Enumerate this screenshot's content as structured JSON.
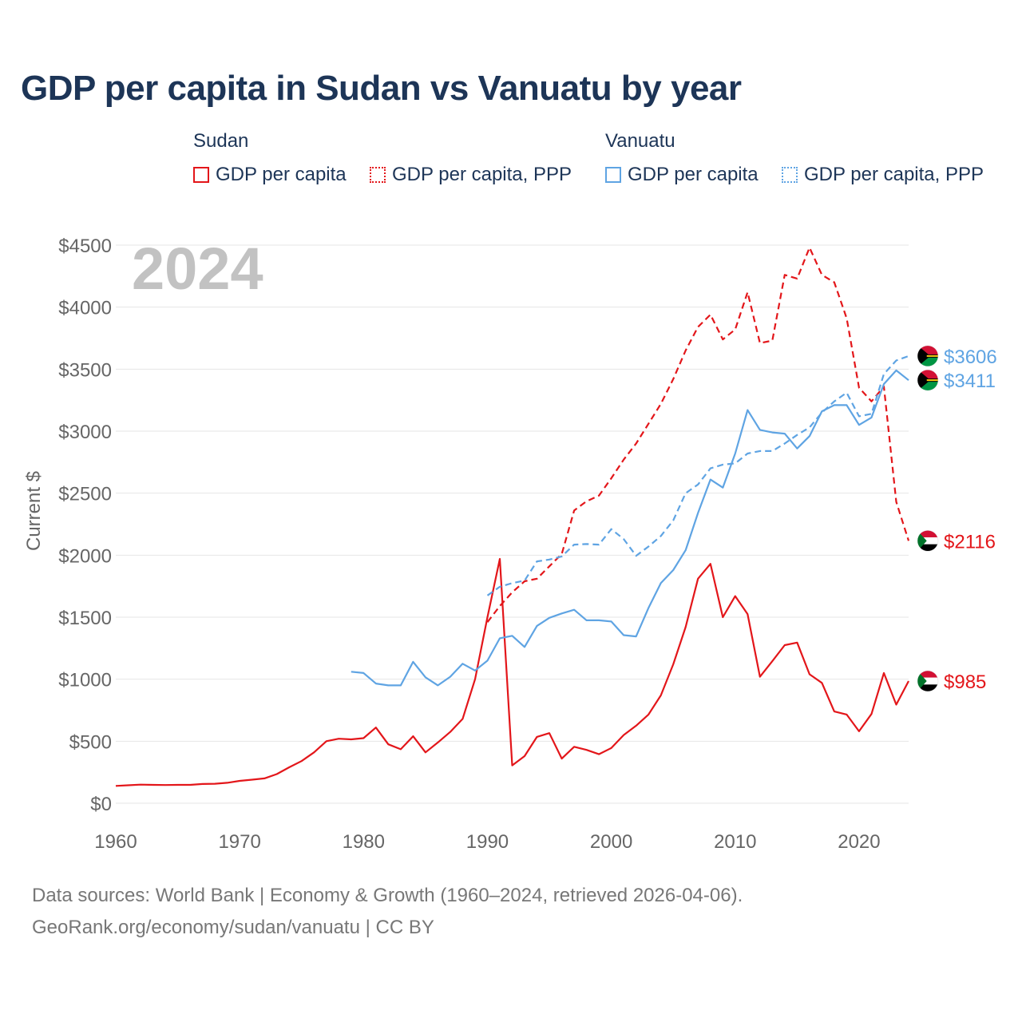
{
  "chart_data": {
    "type": "line",
    "title": "GDP per capita in Sudan vs Vanuatu by year",
    "year_label": "2024",
    "xlabel": "",
    "ylabel": "Current $",
    "xlim": [
      1960,
      2024
    ],
    "ylim": [
      0,
      4500
    ],
    "x_ticks": [
      1960,
      1970,
      1980,
      1990,
      2000,
      2010,
      2020
    ],
    "x_tick_labels": [
      "1960",
      "1970",
      "1980",
      "1990",
      "2000",
      "2010",
      "2020"
    ],
    "y_ticks": [
      0,
      500,
      1000,
      1500,
      2000,
      2500,
      3000,
      3500,
      4000,
      4500
    ],
    "y_tick_labels": [
      "$0",
      "$500",
      "$1000",
      "$1500",
      "$2000",
      "$2500",
      "$3000",
      "$3500",
      "$4000",
      "$4500"
    ],
    "grid": true,
    "legend": {
      "position": "top",
      "groups": [
        {
          "country": "Sudan",
          "items": [
            "GDP per capita",
            "GDP per capita, PPP"
          ]
        },
        {
          "country": "Vanuatu",
          "items": [
            "GDP per capita",
            "GDP per capita, PPP"
          ]
        }
      ]
    },
    "series": [
      {
        "name": "Sudan GDP per capita",
        "country": "Sudan",
        "color": "#e3161a",
        "dash": "solid",
        "end_label": "$985",
        "points": [
          [
            1960,
            140
          ],
          [
            1961,
            145
          ],
          [
            1962,
            150
          ],
          [
            1963,
            148
          ],
          [
            1964,
            147
          ],
          [
            1965,
            148
          ],
          [
            1966,
            148
          ],
          [
            1967,
            155
          ],
          [
            1968,
            157
          ],
          [
            1969,
            165
          ],
          [
            1970,
            180
          ],
          [
            1971,
            190
          ],
          [
            1972,
            200
          ],
          [
            1973,
            235
          ],
          [
            1974,
            290
          ],
          [
            1975,
            340
          ],
          [
            1976,
            410
          ],
          [
            1977,
            500
          ],
          [
            1978,
            520
          ],
          [
            1979,
            515
          ],
          [
            1980,
            525
          ],
          [
            1981,
            610
          ],
          [
            1982,
            475
          ],
          [
            1983,
            435
          ],
          [
            1984,
            540
          ],
          [
            1985,
            410
          ],
          [
            1986,
            490
          ],
          [
            1987,
            575
          ],
          [
            1988,
            680
          ],
          [
            1989,
            1000
          ],
          [
            1990,
            1500
          ],
          [
            1991,
            1970
          ],
          [
            1992,
            305
          ],
          [
            1993,
            380
          ],
          [
            1994,
            535
          ],
          [
            1995,
            565
          ],
          [
            1996,
            360
          ],
          [
            1997,
            455
          ],
          [
            1998,
            430
          ],
          [
            1999,
            395
          ],
          [
            2000,
            445
          ],
          [
            2001,
            550
          ],
          [
            2002,
            625
          ],
          [
            2003,
            715
          ],
          [
            2004,
            870
          ],
          [
            2005,
            1120
          ],
          [
            2006,
            1420
          ],
          [
            2007,
            1810
          ],
          [
            2008,
            1930
          ],
          [
            2009,
            1500
          ],
          [
            2010,
            1670
          ],
          [
            2011,
            1525
          ],
          [
            2012,
            1020
          ],
          [
            2013,
            1145
          ],
          [
            2014,
            1275
          ],
          [
            2015,
            1295
          ],
          [
            2016,
            1040
          ],
          [
            2017,
            970
          ],
          [
            2018,
            740
          ],
          [
            2019,
            715
          ],
          [
            2020,
            580
          ],
          [
            2021,
            720
          ],
          [
            2022,
            1050
          ],
          [
            2023,
            795
          ],
          [
            2024,
            985
          ]
        ]
      },
      {
        "name": "Sudan GDP per capita, PPP",
        "country": "Sudan",
        "color": "#e3161a",
        "dash": "dashed",
        "end_label": "$2116",
        "points": [
          [
            1990,
            1460
          ],
          [
            1991,
            1590
          ],
          [
            1992,
            1700
          ],
          [
            1993,
            1790
          ],
          [
            1994,
            1810
          ],
          [
            1995,
            1910
          ],
          [
            1996,
            2010
          ],
          [
            1997,
            2360
          ],
          [
            1998,
            2435
          ],
          [
            1999,
            2480
          ],
          [
            2000,
            2620
          ],
          [
            2001,
            2770
          ],
          [
            2002,
            2900
          ],
          [
            2003,
            3060
          ],
          [
            2004,
            3220
          ],
          [
            2005,
            3420
          ],
          [
            2006,
            3650
          ],
          [
            2007,
            3840
          ],
          [
            2008,
            3940
          ],
          [
            2009,
            3740
          ],
          [
            2010,
            3820
          ],
          [
            2011,
            4120
          ],
          [
            2012,
            3710
          ],
          [
            2013,
            3730
          ],
          [
            2014,
            4260
          ],
          [
            2015,
            4230
          ],
          [
            2016,
            4480
          ],
          [
            2017,
            4260
          ],
          [
            2018,
            4200
          ],
          [
            2019,
            3910
          ],
          [
            2020,
            3350
          ],
          [
            2021,
            3240
          ],
          [
            2022,
            3360
          ],
          [
            2023,
            2430
          ],
          [
            2024,
            2116
          ]
        ]
      },
      {
        "name": "Vanuatu GDP per capita",
        "country": "Vanuatu",
        "color": "#5fa4e3",
        "dash": "solid",
        "end_label": "$3411",
        "points": [
          [
            1979,
            1060
          ],
          [
            1980,
            1050
          ],
          [
            1981,
            965
          ],
          [
            1982,
            950
          ],
          [
            1983,
            950
          ],
          [
            1984,
            1140
          ],
          [
            1985,
            1015
          ],
          [
            1986,
            950
          ],
          [
            1987,
            1020
          ],
          [
            1988,
            1125
          ],
          [
            1989,
            1070
          ],
          [
            1990,
            1150
          ],
          [
            1991,
            1330
          ],
          [
            1992,
            1350
          ],
          [
            1993,
            1260
          ],
          [
            1994,
            1430
          ],
          [
            1995,
            1495
          ],
          [
            1996,
            1530
          ],
          [
            1997,
            1560
          ],
          [
            1998,
            1475
          ],
          [
            1999,
            1475
          ],
          [
            2000,
            1465
          ],
          [
            2001,
            1355
          ],
          [
            2002,
            1345
          ],
          [
            2003,
            1575
          ],
          [
            2004,
            1775
          ],
          [
            2005,
            1880
          ],
          [
            2006,
            2040
          ],
          [
            2007,
            2340
          ],
          [
            2008,
            2610
          ],
          [
            2009,
            2545
          ],
          [
            2010,
            2820
          ],
          [
            2011,
            3170
          ],
          [
            2012,
            3010
          ],
          [
            2013,
            2990
          ],
          [
            2014,
            2980
          ],
          [
            2015,
            2860
          ],
          [
            2016,
            2960
          ],
          [
            2017,
            3160
          ],
          [
            2018,
            3210
          ],
          [
            2019,
            3210
          ],
          [
            2020,
            3050
          ],
          [
            2021,
            3110
          ],
          [
            2022,
            3380
          ],
          [
            2023,
            3490
          ],
          [
            2024,
            3411
          ]
        ]
      },
      {
        "name": "Vanuatu GDP per capita, PPP",
        "country": "Vanuatu",
        "color": "#5fa4e3",
        "dash": "dashed",
        "end_label": "$3606",
        "points": [
          [
            1990,
            1675
          ],
          [
            1991,
            1745
          ],
          [
            1992,
            1775
          ],
          [
            1993,
            1795
          ],
          [
            1994,
            1950
          ],
          [
            1995,
            1965
          ],
          [
            1996,
            1990
          ],
          [
            1997,
            2085
          ],
          [
            1998,
            2090
          ],
          [
            1999,
            2085
          ],
          [
            2000,
            2210
          ],
          [
            2001,
            2130
          ],
          [
            2002,
            1995
          ],
          [
            2003,
            2070
          ],
          [
            2004,
            2155
          ],
          [
            2005,
            2280
          ],
          [
            2006,
            2500
          ],
          [
            2007,
            2570
          ],
          [
            2008,
            2700
          ],
          [
            2009,
            2730
          ],
          [
            2010,
            2740
          ],
          [
            2011,
            2820
          ],
          [
            2012,
            2840
          ],
          [
            2013,
            2840
          ],
          [
            2014,
            2900
          ],
          [
            2015,
            2970
          ],
          [
            2016,
            3030
          ],
          [
            2017,
            3150
          ],
          [
            2018,
            3240
          ],
          [
            2019,
            3310
          ],
          [
            2020,
            3120
          ],
          [
            2021,
            3140
          ],
          [
            2022,
            3460
          ],
          [
            2023,
            3570
          ],
          [
            2024,
            3606
          ]
        ]
      }
    ]
  },
  "legend": {
    "sudan_title": "Sudan",
    "vanuatu_title": "Vanuatu",
    "sudan_gdp": "GDP per capita",
    "sudan_ppp": "GDP per capita, PPP",
    "vanuatu_gdp": "GDP per capita",
    "vanuatu_ppp": "GDP per capita, PPP"
  },
  "colors": {
    "title": "#1d3557",
    "sudan": "#e3161a",
    "vanuatu": "#5fa4e3",
    "grid": "#e6e6e6",
    "axis_text": "#666666",
    "year_watermark": "#c2c2c2"
  },
  "footer": {
    "line1": "Data sources: World Bank | Economy & Growth (1960–2024, retrieved 2026-04-06).",
    "line2": "GeoRank.org/economy/sudan/vanuatu | CC BY"
  }
}
